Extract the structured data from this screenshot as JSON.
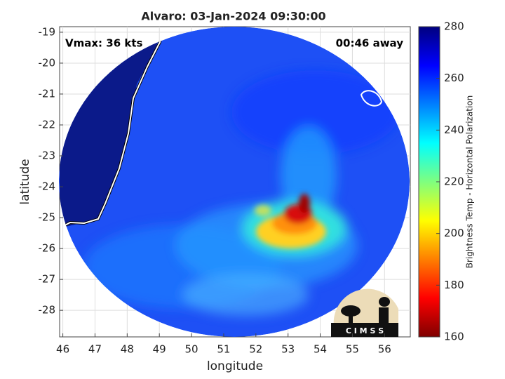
{
  "chart_data": {
    "type": "map",
    "title": "Alvaro: 03-Jan-2024 09:30:00",
    "annotations": {
      "left": "Vmax: 36 kts",
      "right": "00:46 away"
    },
    "x_label": "longitude",
    "y_label": "latitude",
    "xlim": [
      45.9,
      56.8
    ],
    "xticks": [
      46,
      47,
      48,
      49,
      50,
      51,
      52,
      53,
      54,
      55,
      56
    ],
    "ylim": [
      -28.86,
      -18.82
    ],
    "yticks": [
      -28,
      -27,
      -26,
      -25,
      -24,
      -23,
      -22,
      -21,
      -20,
      -19
    ],
    "grid": true,
    "colorbar": {
      "label": "Brightness Temp - Horizontal Polarization",
      "clim": [
        160,
        280
      ],
      "ticks": [
        160,
        180,
        200,
        220,
        240,
        260,
        280
      ],
      "colormap": [
        "#7f0000",
        "#ff0000",
        "#ff7f00",
        "#ffff00",
        "#7fff7f",
        "#00ffff",
        "#007fff",
        "#0000ff",
        "#00007f"
      ]
    },
    "logo_text": "C I M S S"
  }
}
